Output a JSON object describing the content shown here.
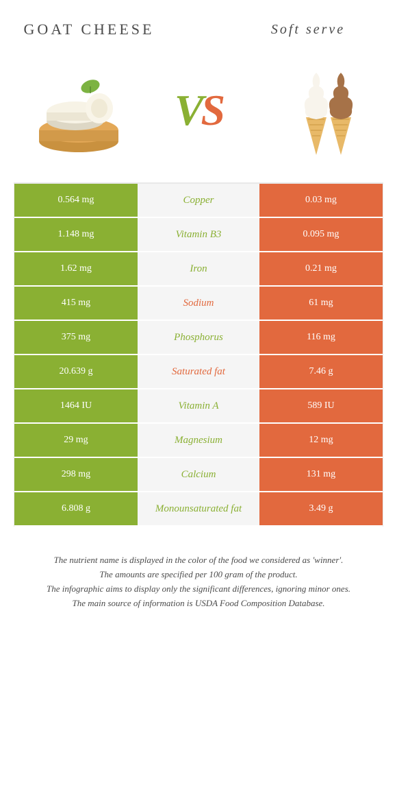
{
  "food_left": "GOAT CHEESE",
  "food_right": "Soft serve",
  "colors": {
    "left": "#8ab033",
    "right": "#e2693e",
    "mid_bg": "#f5f5f5"
  },
  "rows": [
    {
      "left": "0.564 mg",
      "label": "Copper",
      "right": "0.03 mg",
      "label_color": "#8ab033"
    },
    {
      "left": "1.148 mg",
      "label": "Vitamin B3",
      "right": "0.095 mg",
      "label_color": "#8ab033"
    },
    {
      "left": "1.62 mg",
      "label": "Iron",
      "right": "0.21 mg",
      "label_color": "#8ab033"
    },
    {
      "left": "415 mg",
      "label": "Sodium",
      "right": "61 mg",
      "label_color": "#e2693e"
    },
    {
      "left": "375 mg",
      "label": "Phosphorus",
      "right": "116 mg",
      "label_color": "#8ab033"
    },
    {
      "left": "20.639 g",
      "label": "Saturated fat",
      "right": "7.46 g",
      "label_color": "#e2693e"
    },
    {
      "left": "1464 IU",
      "label": "Vitamin A",
      "right": "589 IU",
      "label_color": "#8ab033"
    },
    {
      "left": "29 mg",
      "label": "Magnesium",
      "right": "12 mg",
      "label_color": "#8ab033"
    },
    {
      "left": "298 mg",
      "label": "Calcium",
      "right": "131 mg",
      "label_color": "#8ab033"
    },
    {
      "left": "6.808 g",
      "label": "Monounsaturated fat",
      "right": "3.49 g",
      "label_color": "#8ab033"
    }
  ],
  "footer": [
    "The nutrient name is displayed in the color of the food we considered as 'winner'.",
    "The amounts are specified per 100 gram of the product.",
    "The infographic aims to display only the significant differences, ignoring minor ones.",
    "The main source of information is USDA Food Composition Database."
  ]
}
